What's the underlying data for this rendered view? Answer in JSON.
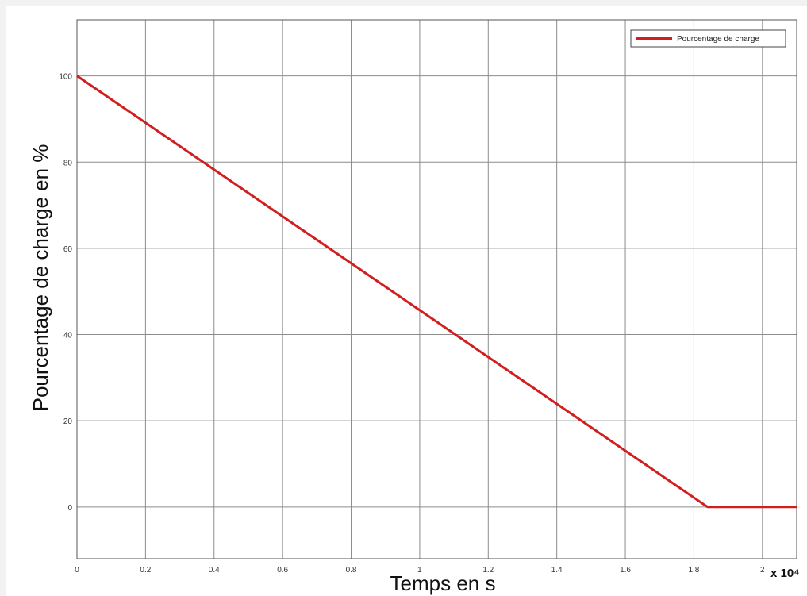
{
  "chart_data": {
    "type": "line",
    "title": "",
    "xlabel": "Temps en s",
    "ylabel": "Pourcentage de charge en %",
    "x_multiplier_label": "x 10⁴",
    "xlim": [
      0,
      2.1
    ],
    "ylim": [
      -12,
      113
    ],
    "x_ticks": [
      0,
      0.2,
      0.4,
      0.6,
      0.8,
      1,
      1.2,
      1.4,
      1.6,
      1.8,
      2
    ],
    "x_tick_labels": [
      "0",
      "0.2",
      "0.4",
      "0.6",
      "0.8",
      "1",
      "1.2",
      "1.4",
      "1.6",
      "1.8",
      "2"
    ],
    "y_ticks": [
      0,
      20,
      40,
      60,
      80,
      100
    ],
    "y_tick_labels": [
      "0",
      "20",
      "40",
      "60",
      "80",
      "100"
    ],
    "grid": true,
    "legend_position": "top-right",
    "series": [
      {
        "name": "Pourcentage de charge",
        "color": "#d11f1f",
        "x": [
          0,
          1.84,
          2.1
        ],
        "y": [
          100,
          0,
          0
        ]
      }
    ]
  }
}
